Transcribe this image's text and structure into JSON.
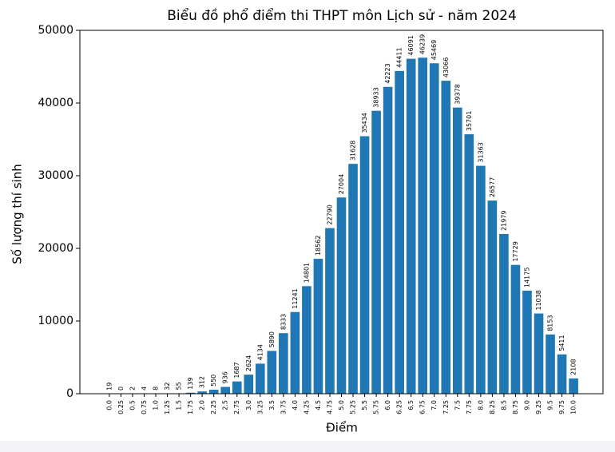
{
  "chart_data": {
    "type": "bar",
    "title": "Biểu đồ phổ điểm thi THPT môn Lịch sử - năm 2024",
    "x_label": "Điểm",
    "y_label": "Số lượng thí sinh",
    "categories": [
      "0.0",
      "0.25",
      "0.5",
      "0.75",
      "1.0",
      "1.25",
      "1.5",
      "1.75",
      "2.0",
      "2.25",
      "2.5",
      "2.75",
      "3.0",
      "3.25",
      "3.5",
      "3.75",
      "4.0",
      "4.25",
      "4.5",
      "4.75",
      "5.0",
      "5.25",
      "5.5",
      "5.75",
      "6.0",
      "6.25",
      "6.5",
      "6.75",
      "7.0",
      "7.25",
      "7.5",
      "7.75",
      "8.0",
      "8.25",
      "8.5",
      "8.75",
      "9.0",
      "9.25",
      "9.5",
      "9.75",
      "10.0"
    ],
    "values": [
      19,
      0,
      2,
      4,
      8,
      32,
      55,
      139,
      312,
      550,
      936,
      1687,
      2624,
      4134,
      5890,
      8333,
      11241,
      14801,
      18562,
      22790,
      27004,
      31628,
      35434,
      38933,
      42223,
      44411,
      46091,
      46239,
      45469,
      43066,
      39378,
      35701,
      31363,
      26577,
      21979,
      17729,
      14175,
      11038,
      8153,
      5411,
      2108
    ],
    "color": "#1f77b4",
    "ylim": [
      0,
      50000
    ],
    "yticks": [
      0,
      10000,
      20000,
      30000,
      40000,
      50000
    ]
  }
}
